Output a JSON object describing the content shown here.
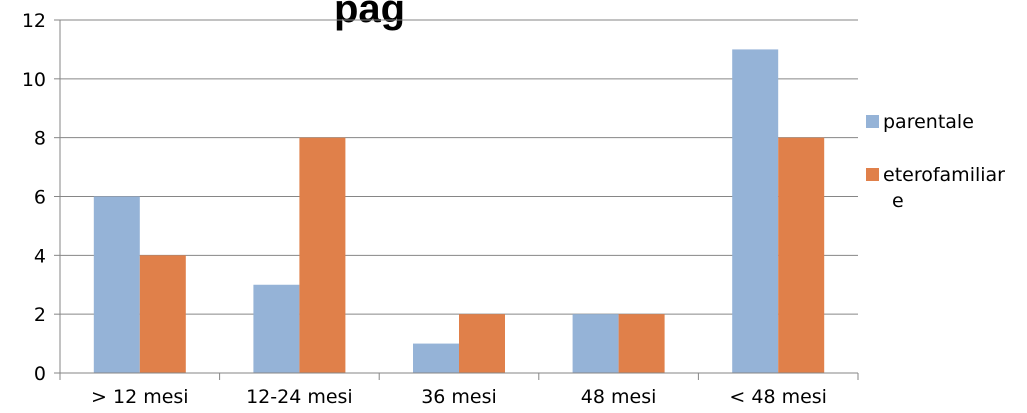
{
  "chart_data": {
    "type": "bar",
    "title_fragment": "pag",
    "categories": [
      "> 12 mesi",
      "12-24 mesi",
      "36 mesi",
      "48 mesi",
      "< 48 mesi"
    ],
    "series": [
      {
        "name": "parentale",
        "color": "#95B3D7",
        "values": [
          6,
          3,
          1,
          2,
          11
        ]
      },
      {
        "name": "eterofamiliare",
        "legend_lines": [
          "eterofamiliar",
          "e"
        ],
        "color": "#E0804A",
        "values": [
          4,
          8,
          2,
          2,
          8
        ]
      }
    ],
    "ylim": [
      0,
      12
    ],
    "yticks": [
      0,
      2,
      4,
      6,
      8,
      10,
      12
    ],
    "grid": true,
    "legend_position": "right"
  }
}
